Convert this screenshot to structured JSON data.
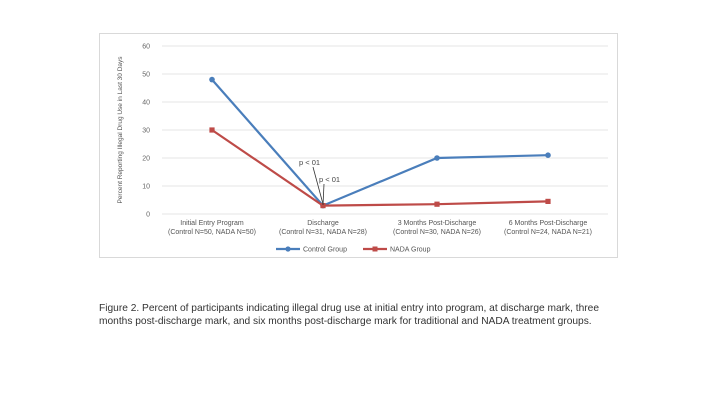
{
  "chart_data": {
    "type": "line",
    "title": "",
    "ylabel": "Percent Reporting Illegal Drug Use in Last 30 Days",
    "xlabel": "",
    "ylim": [
      0,
      60
    ],
    "yticks": [
      0,
      10,
      20,
      30,
      40,
      50,
      60
    ],
    "grid": true,
    "legend_position": "bottom",
    "categories": [
      {
        "line1": "Initial Entry Program",
        "line2": "(Control N=50, NADA N=50)"
      },
      {
        "line1": "Discharge",
        "line2": "(Control N=31, NADA N=28)"
      },
      {
        "line1": "3 Months Post-Discharge",
        "line2": "(Control N=30, NADA N=26)"
      },
      {
        "line1": "6 Months Post-Discharge",
        "line2": "(Control N=24, NADA N=21)"
      }
    ],
    "series": [
      {
        "name": "Control Group",
        "values": [
          48,
          3,
          20,
          21
        ],
        "color": "#4a7ebb",
        "marker": "circle"
      },
      {
        "name": "NADA Group",
        "values": [
          30,
          3,
          3.5,
          4.5
        ],
        "color": "#be4b48",
        "marker": "square"
      }
    ],
    "annotations": [
      "p < 01",
      "p < 01"
    ]
  },
  "caption": "Figure 2. Percent of participants indicating illegal drug use at initial entry into program, at discharge mark, three months post-discharge mark, and six months post-discharge mark for traditional and NADA treatment groups."
}
